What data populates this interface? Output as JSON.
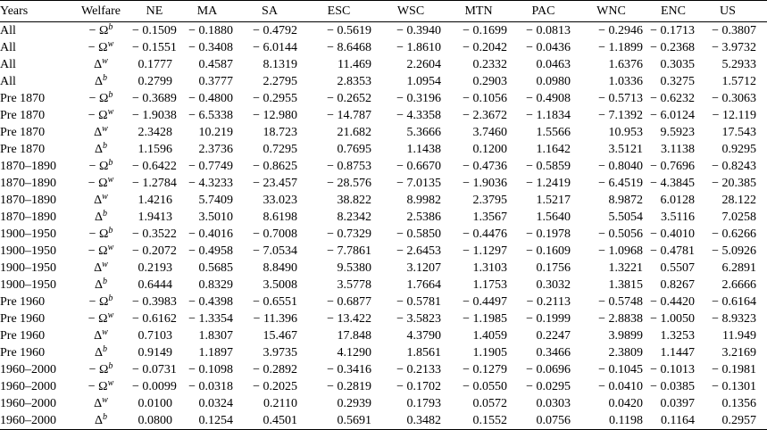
{
  "table": {
    "header": [
      "Years",
      "Welfare",
      "NE",
      "MA",
      "SA",
      "ESC",
      "WSC",
      "MTN",
      "PAC",
      "WNC",
      "ENC",
      "US"
    ],
    "rows": [
      [
        "All",
        {
          "symbol": "− Ω",
          "sup": "b"
        },
        "− 0.1509",
        "− 0.1880",
        "− 0.4792",
        "− 0.5619",
        "− 0.3940",
        "− 0.1699",
        "− 0.0813",
        "− 0.2946",
        "− 0.1713",
        "− 0.3807"
      ],
      [
        "All",
        {
          "symbol": "− Ω",
          "sup": "w"
        },
        "− 0.1551",
        "− 0.3408",
        "− 6.0144",
        "− 8.6468",
        "− 1.8610",
        "− 0.2042",
        "− 0.0436",
        "− 1.1899",
        "− 0.2368",
        "− 3.9732"
      ],
      [
        "All",
        {
          "symbol": "Δ",
          "sup": "w"
        },
        "0.1777",
        "0.4587",
        "8.1319",
        "11.469",
        "2.2604",
        "0.2332",
        "0.0463",
        "1.6376",
        "0.3035",
        "5.2933"
      ],
      [
        "All",
        {
          "symbol": "Δ",
          "sup": "b"
        },
        "0.2799",
        "0.3777",
        "2.2795",
        "2.8353",
        "1.0954",
        "0.2903",
        "0.0980",
        "1.0336",
        "0.3275",
        "1.5712"
      ],
      [
        "Pre 1870",
        {
          "symbol": "− Ω",
          "sup": "b"
        },
        "− 0.3689",
        "− 0.4800",
        "− 0.2955",
        "− 0.2652",
        "− 0.3196",
        "− 0.1056",
        "− 0.4908",
        "− 0.5713",
        "− 0.6232",
        "− 0.3063"
      ],
      [
        "Pre 1870",
        {
          "symbol": "− Ω",
          "sup": "w"
        },
        "− 1.9038",
        "− 6.5338",
        "− 12.980",
        "− 14.787",
        "− 4.3358",
        "− 2.3672",
        "− 1.1834",
        "− 7.1392",
        "− 6.0124",
        "− 12.119"
      ],
      [
        "Pre 1870",
        {
          "symbol": "Δ",
          "sup": "w"
        },
        "2.3428",
        "10.219",
        "18.723",
        "21.682",
        "5.3666",
        "3.7460",
        "1.5566",
        "10.953",
        "9.5923",
        "17.543"
      ],
      [
        "Pre 1870",
        {
          "symbol": "Δ",
          "sup": "b"
        },
        "1.1596",
        "2.3736",
        "0.7295",
        "0.7695",
        "1.1438",
        "0.1200",
        "1.1642",
        "3.5121",
        "3.1138",
        "0.9295"
      ],
      [
        "1870–1890",
        {
          "symbol": "− Ω",
          "sup": "b"
        },
        "− 0.6422",
        "− 0.7749",
        "− 0.8625",
        "− 0.8753",
        "− 0.6670",
        "− 0.4736",
        "− 0.5859",
        "− 0.8040",
        "− 0.7696",
        "− 0.8243"
      ],
      [
        "1870–1890",
        {
          "symbol": "− Ω",
          "sup": "w"
        },
        "− 1.2784",
        "− 4.3233",
        "− 23.457",
        "− 28.576",
        "− 7.0135",
        "− 1.9036",
        "− 1.2419",
        "− 6.4519",
        "− 4.3845",
        "− 20.385"
      ],
      [
        "1870–1890",
        {
          "symbol": "Δ",
          "sup": "w"
        },
        "1.4216",
        "5.7409",
        "33.023",
        "38.822",
        "8.9982",
        "2.3795",
        "1.5217",
        "8.9872",
        "6.0128",
        "28.122"
      ],
      [
        "1870–1890",
        {
          "symbol": "Δ",
          "sup": "b"
        },
        "1.9413",
        "3.5010",
        "8.6198",
        "8.2342",
        "2.5386",
        "1.3567",
        "1.5640",
        "5.5054",
        "3.5116",
        "7.0258"
      ],
      [
        "1900–1950",
        {
          "symbol": "− Ω",
          "sup": "b"
        },
        "− 0.3522",
        "− 0.4016",
        "− 0.7008",
        "− 0.7329",
        "− 0.5850",
        "− 0.4476",
        "− 0.1978",
        "− 0.5056",
        "− 0.4010",
        "− 0.6266"
      ],
      [
        "1900–1950",
        {
          "symbol": "− Ω",
          "sup": "w"
        },
        "− 0.2072",
        "− 0.4958",
        "− 7.0534",
        "− 7.7861",
        "− 2.6453",
        "− 1.1297",
        "− 0.1609",
        "− 1.0968",
        "− 0.4781",
        "− 5.0926"
      ],
      [
        "1900–1950",
        {
          "symbol": "Δ",
          "sup": "w"
        },
        "0.2193",
        "0.5685",
        "8.8490",
        "9.5380",
        "3.1207",
        "1.3103",
        "0.1756",
        "1.3221",
        "0.5507",
        "6.2891"
      ],
      [
        "1900–1950",
        {
          "symbol": "Δ",
          "sup": "b"
        },
        "0.6444",
        "0.8329",
        "3.5008",
        "3.5778",
        "1.7664",
        "1.1753",
        "0.3032",
        "1.3815",
        "0.8267",
        "2.6666"
      ],
      [
        "Pre 1960",
        {
          "symbol": "− Ω",
          "sup": "b"
        },
        "− 0.3983",
        "− 0.4398",
        "− 0.6551",
        "− 0.6877",
        "− 0.5781",
        "− 0.4497",
        "− 0.2113",
        "− 0.5748",
        "− 0.4420",
        "− 0.6164"
      ],
      [
        "Pre 1960",
        {
          "symbol": "− Ω",
          "sup": "w"
        },
        "− 0.6162",
        "− 1.3354",
        "− 11.396",
        "− 13.422",
        "− 3.5823",
        "− 1.1985",
        "− 0.1999",
        "− 2.8838",
        "− 1.0050",
        "− 8.9323"
      ],
      [
        "Pre 1960",
        {
          "symbol": "Δ",
          "sup": "w"
        },
        "0.7103",
        "1.8307",
        "15.467",
        "17.848",
        "4.3790",
        "1.4059",
        "0.2247",
        "3.9899",
        "1.3253",
        "11.949"
      ],
      [
        "Pre 1960",
        {
          "symbol": "Δ",
          "sup": "b"
        },
        "0.9149",
        "1.1897",
        "3.9735",
        "4.1290",
        "1.8561",
        "1.1905",
        "0.3466",
        "2.3809",
        "1.1447",
        "3.2169"
      ],
      [
        "1960–2000",
        {
          "symbol": "− Ω",
          "sup": "b"
        },
        "− 0.0731",
        "− 0.1098",
        "− 0.2892",
        "− 0.3416",
        "− 0.2133",
        "− 0.1279",
        "− 0.0696",
        "− 0.1045",
        "− 0.1013",
        "− 0.1981"
      ],
      [
        "1960–2000",
        {
          "symbol": "− Ω",
          "sup": "w"
        },
        "− 0.0099",
        "− 0.0318",
        "− 0.2025",
        "− 0.2819",
        "− 0.1702",
        "− 0.0550",
        "− 0.0295",
        "− 0.0410",
        "− 0.0385",
        "− 0.1301"
      ],
      [
        "1960–2000",
        {
          "symbol": "Δ",
          "sup": "w"
        },
        "0.0100",
        "0.0324",
        "0.2110",
        "0.2939",
        "0.1793",
        "0.0572",
        "0.0303",
        "0.0420",
        "0.0397",
        "0.1356"
      ],
      [
        "1960–2000",
        {
          "symbol": "Δ",
          "sup": "b"
        },
        "0.0800",
        "0.1254",
        "0.4501",
        "0.5691",
        "0.3482",
        "0.1552",
        "0.0756",
        "0.1198",
        "0.1164",
        "0.2957"
      ]
    ]
  }
}
